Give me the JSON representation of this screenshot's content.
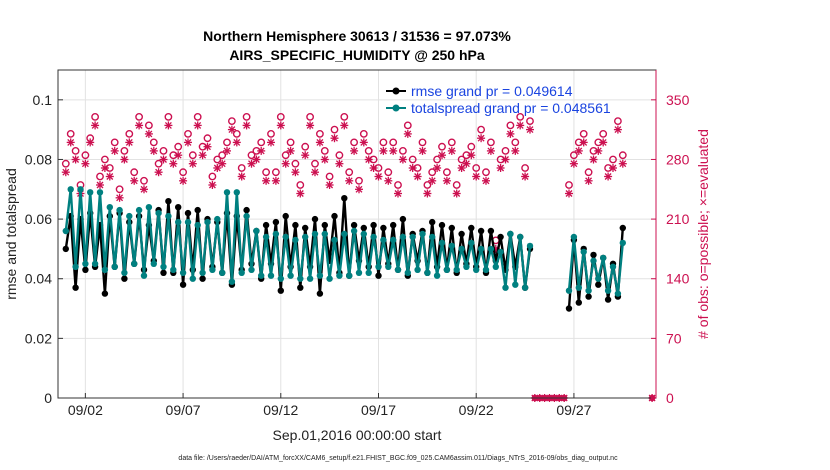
{
  "chart_data": {
    "type": "line",
    "title_line1": "Northern Hemisphere 30613 / 31536 = 97.073%",
    "title_line2": "AIRS_SPECIFIC_HUMIDITY @ 250 hPa",
    "xlabel": "Sep.01,2016 00:00:00 start",
    "ylabel_left": "rmse and totalspread",
    "ylabel_right": "# of obs: o=possible; ×=evaluated",
    "footer": "data file: /Users/raeder/DAI/ATM_forcXX/CAM6_setup/f.e21.FHIST_BGC.f09_025.CAM6assim.011/Diags_NTrS_2016-09/obs_diag_output.nc",
    "xlim": [
      0.6,
      31.2
    ],
    "ylim_left": [
      0,
      0.11
    ],
    "ylim_right": [
      0,
      385
    ],
    "x_ticks": [
      {
        "x": 2,
        "label": "09/02"
      },
      {
        "x": 7,
        "label": "09/07"
      },
      {
        "x": 12,
        "label": "09/12"
      },
      {
        "x": 17,
        "label": "09/17"
      },
      {
        "x": 22,
        "label": "09/22"
      },
      {
        "x": 27,
        "label": "09/27"
      }
    ],
    "y_ticks_left": [
      {
        "v": 0,
        "label": "0"
      },
      {
        "v": 0.02,
        "label": "0.02"
      },
      {
        "v": 0.04,
        "label": "0.04"
      },
      {
        "v": 0.06,
        "label": "0.06"
      },
      {
        "v": 0.08,
        "label": "0.08"
      },
      {
        "v": 0.1,
        "label": "0.1"
      }
    ],
    "y_ticks_right": [
      {
        "v": 0,
        "label": "0"
      },
      {
        "v": 70,
        "label": "70"
      },
      {
        "v": 140,
        "label": "140"
      },
      {
        "v": 210,
        "label": "210"
      },
      {
        "v": 280,
        "label": "280"
      },
      {
        "v": 350,
        "label": "350"
      }
    ],
    "legend": [
      {
        "label": "rmse grand pr = 0.049614",
        "color": "#000000"
      },
      {
        "label": "totalspread grand pr = 0.048561",
        "color": "#008080"
      }
    ],
    "colors": {
      "rmse": "#000000",
      "spread": "#008080",
      "obs": "#cc1050"
    },
    "series": [
      {
        "name": "rmse",
        "segments": [
          {
            "start": 1.0,
            "step": 0.25,
            "values": [
              0.05,
              0.061,
              0.037,
              0.06,
              0.043,
              0.062,
              0.044,
              0.058,
              0.035,
              0.061,
              0.044,
              0.062,
              0.04,
              0.059,
              0.045,
              0.061,
              0.043,
              0.058,
              0.046,
              0.063,
              0.042,
              0.066,
              0.042,
              0.064,
              0.038,
              0.062,
              0.043,
              0.063,
              0.04,
              0.06,
              0.044,
              0.059,
              0.042,
              0.062,
              0.038,
              0.061,
              0.043,
              0.063,
              0.045,
              0.056,
              0.04,
              0.058,
              0.045,
              0.059,
              0.036,
              0.061,
              0.044,
              0.058,
              0.037,
              0.057,
              0.044,
              0.06,
              0.035,
              0.058,
              0.046,
              0.061,
              0.042,
              0.067,
              0.041,
              0.058,
              0.046,
              0.057,
              0.044,
              0.058,
              0.041,
              0.057,
              0.045,
              0.058,
              0.043,
              0.06,
              0.041,
              0.055,
              0.046,
              0.056,
              0.042,
              0.059,
              0.044,
              0.058,
              0.043,
              0.057,
              0.042,
              0.055,
              0.045,
              0.057,
              0.044,
              0.056,
              0.042,
              0.056,
              0.046,
              0.054,
              0.043,
              0.055,
              0.044,
              0.054,
              0.037,
              0.05
            ]
          },
          {
            "start": 26.75,
            "step": 0.25,
            "values": [
              0.03,
              0.053,
              0.032,
              0.05,
              0.034,
              0.048,
              0.038,
              0.047,
              0.033,
              0.045,
              0.034,
              0.057
            ]
          }
        ]
      },
      {
        "name": "totalspread",
        "segments": [
          {
            "start": 1.0,
            "step": 0.25,
            "values": [
              0.056,
              0.07,
              0.044,
              0.07,
              0.045,
              0.069,
              0.045,
              0.069,
              0.043,
              0.064,
              0.044,
              0.063,
              0.042,
              0.061,
              0.045,
              0.063,
              0.041,
              0.064,
              0.045,
              0.062,
              0.044,
              0.061,
              0.043,
              0.059,
              0.042,
              0.059,
              0.04,
              0.058,
              0.042,
              0.059,
              0.043,
              0.06,
              0.042,
              0.069,
              0.039,
              0.069,
              0.042,
              0.061,
              0.043,
              0.056,
              0.041,
              0.054,
              0.041,
              0.055,
              0.04,
              0.054,
              0.041,
              0.053,
              0.04,
              0.054,
              0.04,
              0.055,
              0.041,
              0.055,
              0.04,
              0.053,
              0.041,
              0.055,
              0.041,
              0.056,
              0.042,
              0.055,
              0.042,
              0.054,
              0.044,
              0.053,
              0.044,
              0.053,
              0.043,
              0.054,
              0.042,
              0.054,
              0.043,
              0.055,
              0.042,
              0.054,
              0.041,
              0.052,
              0.043,
              0.051,
              0.043,
              0.05,
              0.044,
              0.052,
              0.043,
              0.05,
              0.043,
              0.05,
              0.044,
              0.049,
              0.037,
              0.055,
              0.038,
              0.054,
              0.037,
              0.051
            ]
          },
          {
            "start": 26.75,
            "step": 0.25,
            "values": [
              0.036,
              0.054,
              0.037,
              0.049,
              0.036,
              0.046,
              0.04,
              0.047,
              0.036,
              0.044,
              0.035,
              0.052
            ]
          }
        ]
      },
      {
        "name": "obs_possible",
        "segments": [
          {
            "start": 1.0,
            "step": 0.25,
            "values": [
              275,
              310,
              290,
              250,
              285,
              305,
              330,
              260,
              280,
              270,
              300,
              245,
              290,
              310,
              265,
              330,
              255,
              320,
              300,
              275,
              290,
              330,
              285,
              295,
              265,
              310,
              285,
              330,
              295,
              305,
              260,
              280,
              285,
              300,
              325,
              310,
              270,
              330,
              285,
              290,
              300,
              265,
              310,
              265,
              330,
              285,
              300,
              275,
              250,
              295,
              330,
              275,
              310,
              290,
              260,
              315,
              285,
              330,
              265,
              300,
              255,
              310,
              290,
              280,
              270,
              300,
              265,
              300,
              250,
              290,
              320,
              280,
              270,
              300,
              250,
              265,
              280,
              295,
              265,
              300,
              250,
              280,
              285,
              295,
              270,
              315,
              265,
              300,
              185,
              280,
              290,
              320,
              300,
              330,
              270,
              325
            ]
          },
          {
            "start": 25.0,
            "step": 0.25,
            "values": [
              0,
              0,
              0,
              0,
              0,
              0,
              0
            ]
          },
          {
            "start": 26.75,
            "step": 0.25,
            "values": [
              250,
              285,
              300,
              310,
              265,
              290,
              300,
              310,
              270,
              280,
              325,
              285
            ]
          },
          {
            "start": 31.0,
            "step": 0.25,
            "values": [
              0
            ]
          }
        ]
      },
      {
        "name": "obs_evaluated",
        "segments": [
          {
            "start": 1.0,
            "step": 0.25,
            "values": [
              265,
              300,
              280,
              240,
              275,
              300,
              320,
              250,
              270,
              260,
              290,
              235,
              280,
              300,
              255,
              320,
              245,
              310,
              290,
              265,
              280,
              320,
              275,
              285,
              255,
              300,
              275,
              320,
              285,
              295,
              250,
              270,
              275,
              290,
              315,
              300,
              260,
              320,
              275,
              280,
              290,
              255,
              300,
              255,
              320,
              275,
              290,
              265,
              240,
              285,
              320,
              265,
              300,
              280,
              250,
              305,
              275,
              320,
              255,
              290,
              245,
              300,
              280,
              270,
              260,
              290,
              255,
              290,
              240,
              280,
              310,
              270,
              260,
              290,
              240,
              255,
              270,
              285,
              255,
              290,
              240,
              270,
              275,
              285,
              260,
              305,
              255,
              290,
              175,
              270,
              280,
              310,
              290,
              320,
              260,
              315
            ]
          },
          {
            "start": 25.0,
            "step": 0.25,
            "values": [
              0,
              0,
              0,
              0,
              0,
              0,
              0
            ]
          },
          {
            "start": 26.75,
            "step": 0.25,
            "values": [
              240,
              275,
              290,
              300,
              255,
              280,
              290,
              300,
              260,
              270,
              315,
              275
            ]
          },
          {
            "start": 31.0,
            "step": 0.25,
            "values": [
              0
            ]
          }
        ]
      }
    ]
  }
}
